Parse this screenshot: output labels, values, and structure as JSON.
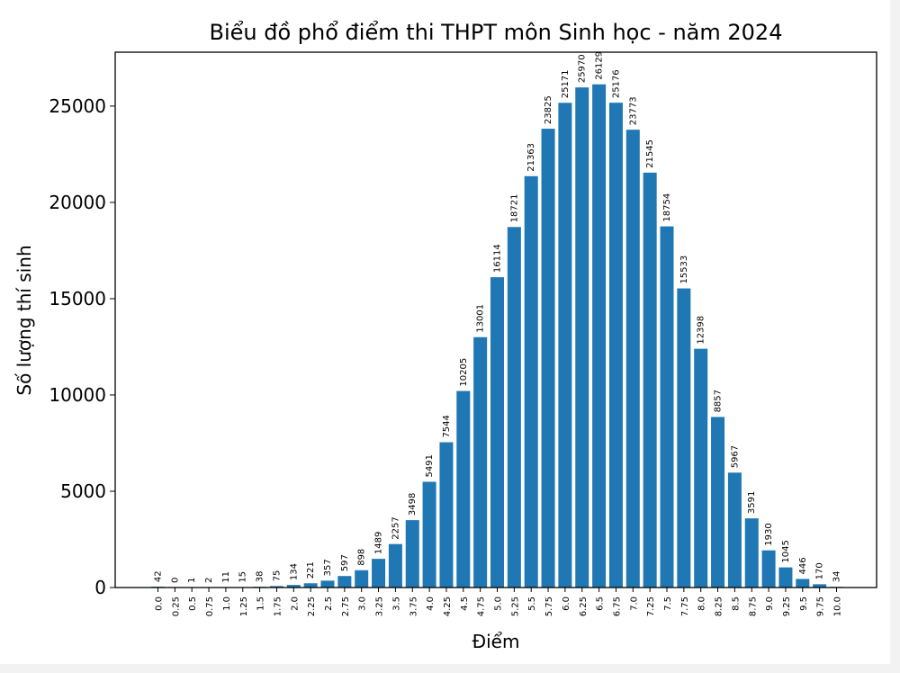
{
  "chart_data": {
    "type": "bar",
    "title": "Biểu đồ phổ điểm thi THPT môn Sinh học - năm 2024",
    "xlabel": "Điểm",
    "ylabel": "Số lượng thí sinh",
    "categories": [
      "0.0",
      "0.25",
      "0.5",
      "0.75",
      "1.0",
      "1.25",
      "1.5",
      "1.75",
      "2.0",
      "2.25",
      "2.5",
      "2.75",
      "3.0",
      "3.25",
      "3.5",
      "3.75",
      "4.0",
      "4.25",
      "4.5",
      "4.75",
      "5.0",
      "5.25",
      "5.5",
      "5.75",
      "6.0",
      "6.25",
      "6.5",
      "6.75",
      "7.0",
      "7.25",
      "7.5",
      "7.75",
      "8.0",
      "8.25",
      "8.5",
      "8.75",
      "9.0",
      "9.25",
      "9.5",
      "9.75",
      "10.0"
    ],
    "values": [
      42,
      0,
      1,
      2,
      11,
      15,
      38,
      75,
      134,
      221,
      357,
      597,
      898,
      1489,
      2257,
      3498,
      5491,
      7544,
      10205,
      13001,
      16114,
      18721,
      21363,
      23825,
      25171,
      25970,
      26129,
      25176,
      23773,
      21545,
      18754,
      15533,
      12398,
      8857,
      5967,
      3591,
      1930,
      1045,
      446,
      170,
      34
    ],
    "yticks": [
      0,
      5000,
      10000,
      15000,
      20000,
      25000
    ],
    "ylim": [
      0,
      27800
    ],
    "bar_color": "#1f77b4",
    "grid": false,
    "legend": "none"
  }
}
